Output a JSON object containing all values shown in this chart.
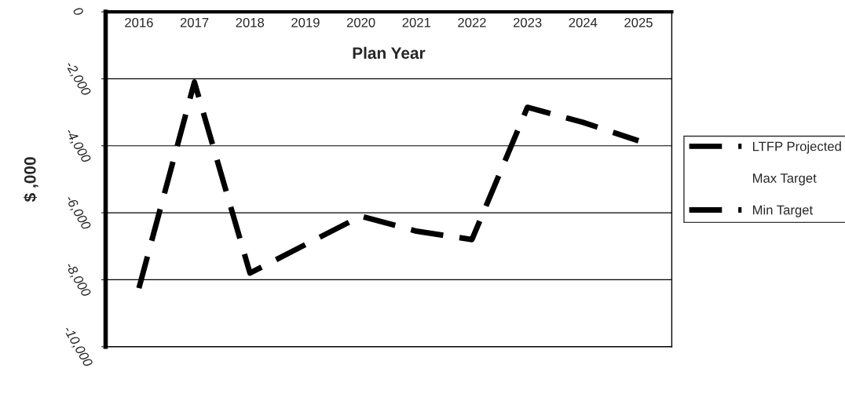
{
  "chart_data": {
    "type": "line",
    "xlabel": "Plan Year",
    "ylabel": "$ ,000",
    "categories": [
      "2016",
      "2017",
      "2018",
      "2019",
      "2020",
      "2021",
      "2022",
      "2023",
      "2024",
      "2025"
    ],
    "series": [
      {
        "name": "LTFP Projected",
        "color": "#000000",
        "values": [
          -8250,
          -2100,
          -7800,
          -6950,
          -6100,
          -6550,
          -6800,
          -2850,
          -3300,
          -3850
        ]
      },
      {
        "name": "Max Target",
        "values": [
          null,
          null,
          null,
          null,
          null,
          null,
          null,
          null,
          null,
          null
        ]
      },
      {
        "name": "Min Target",
        "color": "#000000",
        "values": [
          null,
          null,
          null,
          null,
          null,
          null,
          null,
          null,
          null,
          null
        ]
      }
    ],
    "ylim": [
      -10000,
      0
    ],
    "yticks": [
      0,
      {
        "value": -2000,
        "label": "-2,000"
      },
      {
        "value": -4000,
        "label": "-4,000"
      },
      {
        "value": -6000,
        "label": "-6,000"
      },
      {
        "value": -8000,
        "label": "-8,000"
      },
      {
        "value": -10000,
        "label": "-10,000"
      }
    ],
    "grid": "y",
    "legend": "right",
    "line_style": "dashed",
    "marker": "none"
  }
}
